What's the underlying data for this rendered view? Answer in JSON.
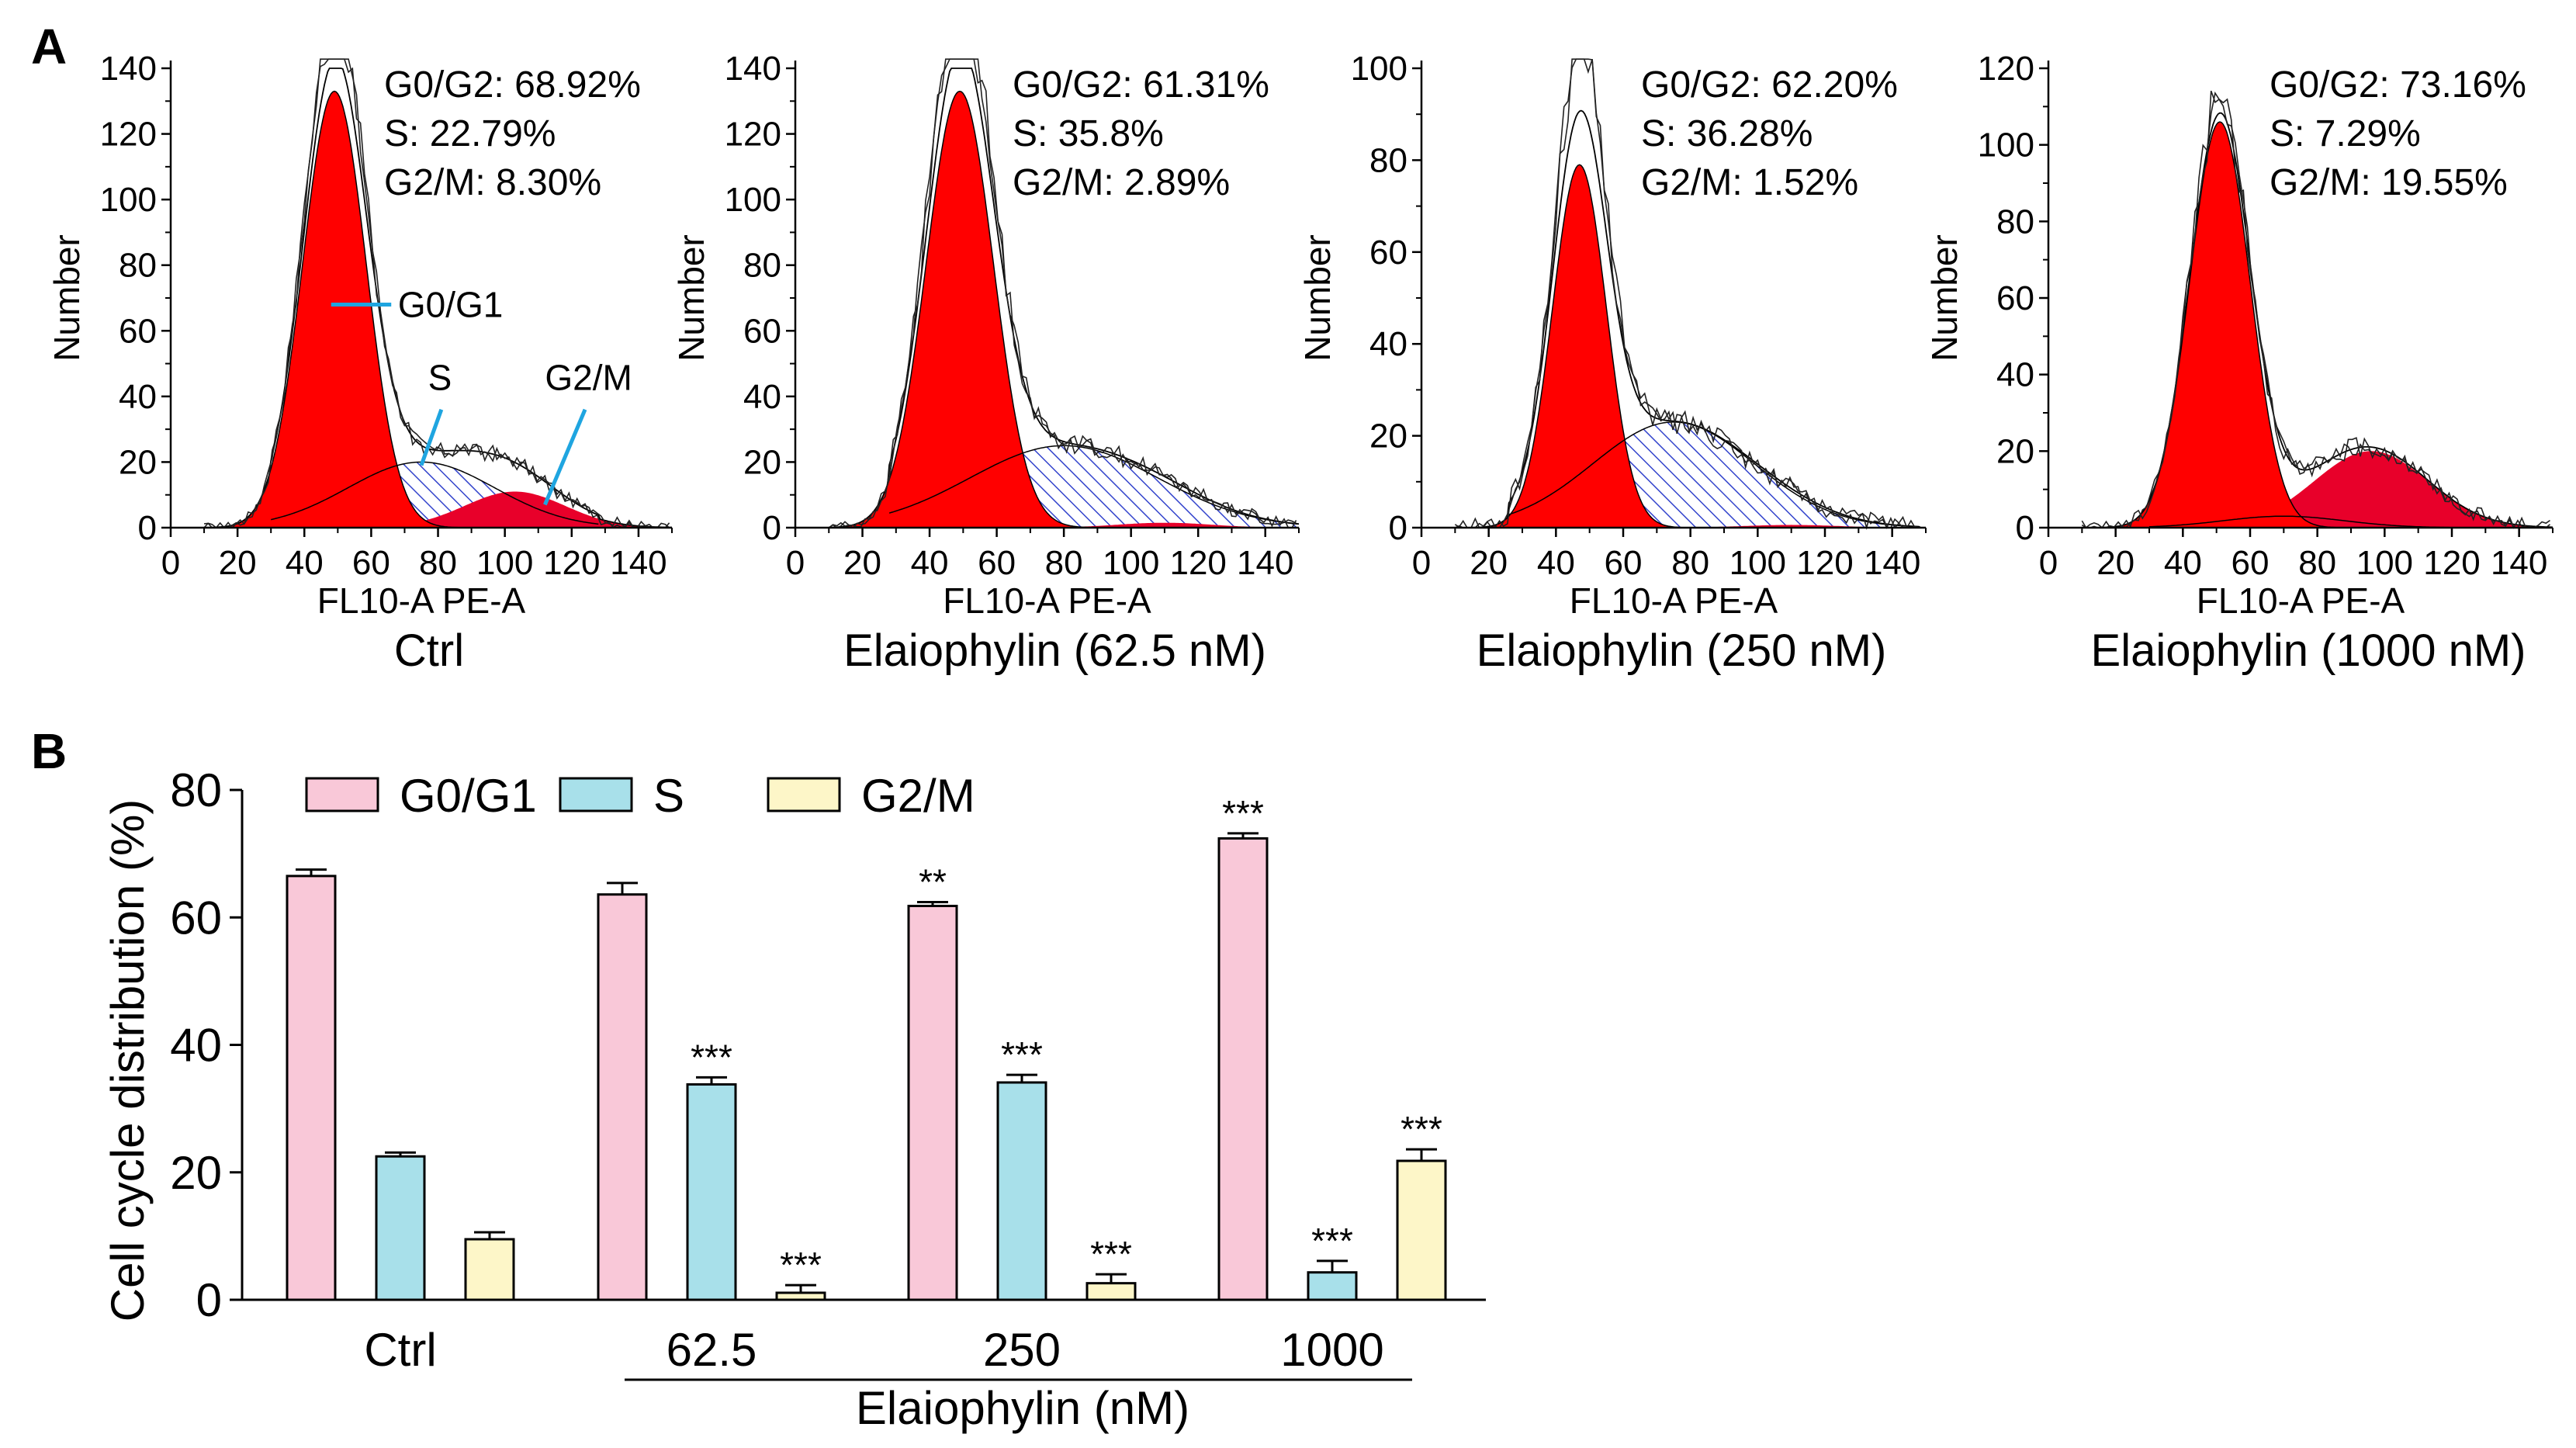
{
  "panel_a_label": "A",
  "panel_b_label": "B",
  "colors": {
    "g0g1": "#ff0000",
    "s_hatch": "#3344cc",
    "g2m": "#e8002a",
    "bar_g0g1": "#f9c8d8",
    "bar_s": "#a8e0ea",
    "bar_g2m": "#fdf6c8",
    "annotation_line": "#1fa5e0"
  },
  "chart_data": [
    {
      "type": "area",
      "panel": "A1",
      "title": "Ctrl",
      "xlabel": "FL10-A PE-A",
      "ylabel": "Number",
      "xlim": [
        0,
        150
      ],
      "ylim": [
        0,
        140
      ],
      "xticks": [
        "0",
        "20",
        "40",
        "60",
        "80",
        "100",
        "120",
        "140"
      ],
      "yticks": [
        "0",
        "20",
        "40",
        "60",
        "80",
        "100",
        "120",
        "140"
      ],
      "stats": [
        "G0/G2: 68.92%",
        "S: 22.79%",
        "G2/M: 8.30%"
      ],
      "callouts": {
        "g0g1": "G0/G1",
        "s": "S",
        "g2m": "G2/M"
      },
      "g0g1": {
        "mu": 49,
        "sigma": 9.5,
        "peak": 133
      },
      "s": {
        "mu": 75,
        "sigma": 22,
        "peak": 20,
        "start": 30,
        "end": 128
      },
      "g2m": {
        "mu": 103,
        "sigma": 15,
        "peak": 11
      },
      "raw_peak": 145
    },
    {
      "type": "area",
      "panel": "A2",
      "title": "Elaiophylin (62.5 nM)",
      "xlabel": "FL10-A PE-A",
      "ylabel": "Number",
      "xlim": [
        0,
        150
      ],
      "ylim": [
        0,
        140
      ],
      "xticks": [
        "0",
        "20",
        "40",
        "60",
        "80",
        "100",
        "120",
        "140"
      ],
      "yticks": [
        "0",
        "20",
        "40",
        "60",
        "80",
        "100",
        "120",
        "140"
      ],
      "stats": [
        "G0/G2: 61.31%",
        "S: 35.8%",
        "G2/M: 2.89%"
      ],
      "g0g1": {
        "mu": 49,
        "sigma": 10,
        "peak": 133
      },
      "s": {
        "mu": 80,
        "sigma": 28,
        "peak": 25,
        "start": 28,
        "end": 150
      },
      "g2m": {
        "mu": 110,
        "sigma": 14,
        "peak": 1.5
      },
      "raw_peak": 147
    },
    {
      "type": "area",
      "panel": "A3",
      "title": "Elaiophylin (250 nM)",
      "xlabel": "FL10-A PE-A",
      "ylabel": "Number",
      "xlim": [
        0,
        150
      ],
      "ylim": [
        0,
        100
      ],
      "xticks": [
        "0",
        "20",
        "40",
        "60",
        "80",
        "100",
        "120",
        "140"
      ],
      "yticks": [
        "0",
        "20",
        "40",
        "60",
        "80",
        "100"
      ],
      "stats": [
        "G0/G2: 62.20%",
        "S: 36.28%",
        "G2/M: 1.52%"
      ],
      "g0g1": {
        "mu": 47,
        "sigma": 8,
        "peak": 79
      },
      "s": {
        "mu": 75,
        "sigma": 24,
        "peak": 23,
        "start": 26,
        "end": 148
      },
      "g2m": {
        "mu": 110,
        "sigma": 14,
        "peak": 0.6
      },
      "raw_peak": 92
    },
    {
      "type": "area",
      "panel": "A4",
      "title": "Elaiophylin (1000 nM)",
      "xlabel": "FL10-A PE-A",
      "ylabel": "Number",
      "xlim": [
        0,
        150
      ],
      "ylim": [
        0,
        120
      ],
      "xticks": [
        "0",
        "20",
        "40",
        "60",
        "80",
        "100",
        "120",
        "140"
      ],
      "yticks": [
        "0",
        "20",
        "40",
        "60",
        "80",
        "100",
        "120"
      ],
      "stats": [
        "G0/G2: 73.16%",
        "S: 7.29%",
        "G2/M: 19.55%"
      ],
      "g0g1": {
        "mu": 51,
        "sigma": 9,
        "peak": 106
      },
      "s": {
        "mu": 70,
        "sigma": 18,
        "peak": 3,
        "start": 30,
        "end": 120
      },
      "g2m": {
        "mu": 96,
        "sigma": 17,
        "peak": 20
      },
      "raw_peak": 110
    },
    {
      "type": "bar",
      "panel": "B",
      "ylabel": "Cell cycle distribution (%)",
      "xlabel": "Elaiophylin (nM)",
      "ylim": [
        0,
        80
      ],
      "yticks": [
        "0",
        "20",
        "40",
        "60",
        "80"
      ],
      "categories": [
        "Ctrl",
        "62.5",
        "250",
        "1000"
      ],
      "series": [
        {
          "name": "G0/G1",
          "values": [
            66.5,
            63.6,
            61.8,
            72.4
          ],
          "errors": [
            1.0,
            1.8,
            0.6,
            0.8
          ],
          "sig": [
            "",
            "",
            "**",
            "***"
          ]
        },
        {
          "name": "S",
          "values": [
            22.5,
            33.8,
            34.1,
            4.3
          ],
          "errors": [
            0.6,
            1.1,
            1.2,
            1.8
          ],
          "sig": [
            "",
            "***",
            "***",
            "***"
          ]
        },
        {
          "name": "G2/M",
          "values": [
            9.5,
            1.1,
            2.6,
            21.8
          ],
          "errors": [
            1.1,
            1.2,
            1.4,
            1.8
          ],
          "sig": [
            "",
            "***",
            "***",
            "***"
          ]
        }
      ]
    }
  ]
}
